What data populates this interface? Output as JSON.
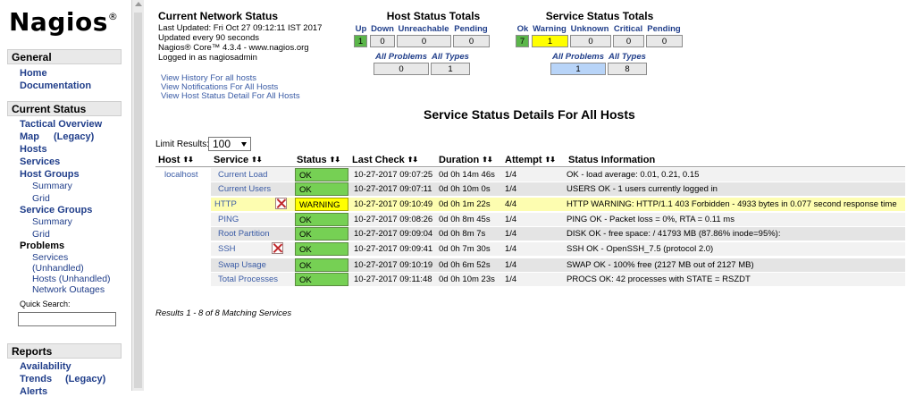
{
  "sidebar": {
    "logo": "Nagios",
    "logo_mark": "®",
    "general": {
      "heading": "General",
      "home": "Home",
      "documentation": "Documentation"
    },
    "current_status": {
      "heading": "Current Status",
      "tactical_overview": "Tactical Overview",
      "map": "Map",
      "legacy": "(Legacy)",
      "hosts": "Hosts",
      "services": "Services",
      "host_groups": "Host Groups",
      "hg_summary": "Summary",
      "hg_grid": "Grid",
      "service_groups": "Service Groups",
      "sg_summary": "Summary",
      "sg_grid": "Grid",
      "problems": "Problems",
      "p_services": "Services",
      "p_unhandled": "(Unhandled)",
      "p_hosts_unhandled": "Hosts (Unhandled)",
      "p_network_outages": "Network Outages",
      "quick_search": "Quick Search:"
    },
    "reports": {
      "heading": "Reports",
      "availability": "Availability",
      "trends": "Trends",
      "legacy": "(Legacy)",
      "alerts": "Alerts"
    }
  },
  "info": {
    "title": "Current Network Status",
    "last_updated": "Last Updated: Fri Oct 27 09:12:11 IST 2017",
    "update_interval": "Updated every 90 seconds",
    "version": "Nagios® Core™ 4.3.4 - www.nagios.org",
    "logged_in": "Logged in as nagiosadmin",
    "links": [
      "View History For all hosts",
      "View Notifications For All Hosts",
      "View Host Status Detail For All Hosts"
    ]
  },
  "host_totals": {
    "title": "Host Status Totals",
    "headers": [
      "Up",
      "Down",
      "Unreachable",
      "Pending"
    ],
    "values": [
      "1",
      "0",
      "0",
      "0"
    ],
    "sub_headers": [
      "All Problems",
      "All Types"
    ],
    "sub_values": [
      "0",
      "1"
    ]
  },
  "service_totals": {
    "title": "Service Status Totals",
    "headers": [
      "Ok",
      "Warning",
      "Unknown",
      "Critical",
      "Pending"
    ],
    "values": [
      "7",
      "1",
      "0",
      "0",
      "0"
    ],
    "sub_headers": [
      "All Problems",
      "All Types"
    ],
    "sub_values": [
      "1",
      "8"
    ]
  },
  "page_heading": "Service Status Details For All Hosts",
  "limit": {
    "label": "Limit Results:",
    "value": "100"
  },
  "table": {
    "columns": [
      "Host",
      "Service",
      "Status",
      "Last Check",
      "Duration",
      "Attempt",
      "Status Information"
    ],
    "sort_glyph": "⬆⬇",
    "rows": [
      {
        "host": "localhost",
        "service": "Current Load",
        "status": "OK",
        "last_check": "10-27-2017 09:07:25",
        "duration": "0d 0h 14m 46s",
        "attempt": "1/4",
        "info": "OK - load average: 0.01, 0.21, 0.15"
      },
      {
        "host": "",
        "service": "Current Users",
        "status": "OK",
        "last_check": "10-27-2017 09:07:11",
        "duration": "0d 0h 10m 0s",
        "attempt": "1/4",
        "info": "USERS OK - 1 users currently logged in"
      },
      {
        "host": "",
        "service": "HTTP",
        "status": "WARNING",
        "last_check": "10-27-2017 09:10:49",
        "duration": "0d 0h 1m 22s",
        "attempt": "4/4",
        "info": "HTTP WARNING: HTTP/1.1 403 Forbidden - 4933 bytes in 0.077 second response time"
      },
      {
        "host": "",
        "service": "PING",
        "status": "OK",
        "last_check": "10-27-2017 09:08:26",
        "duration": "0d 0h 8m 45s",
        "attempt": "1/4",
        "info": "PING OK - Packet loss = 0%, RTA = 0.11 ms"
      },
      {
        "host": "",
        "service": "Root Partition",
        "status": "OK",
        "last_check": "10-27-2017 09:09:04",
        "duration": "0d 0h 8m 7s",
        "attempt": "1/4",
        "info": "DISK OK - free space: / 41793 MB (87.86% inode=95%):"
      },
      {
        "host": "",
        "service": "SSH",
        "status": "OK",
        "last_check": "10-27-2017 09:09:41",
        "duration": "0d 0h 7m 30s",
        "attempt": "1/4",
        "info": "SSH OK - OpenSSH_7.5 (protocol 2.0)"
      },
      {
        "host": "",
        "service": "Swap Usage",
        "status": "OK",
        "last_check": "10-27-2017 09:10:19",
        "duration": "0d 0h 6m 52s",
        "attempt": "1/4",
        "info": "SWAP OK - 100% free (2127 MB out of 2127 MB)"
      },
      {
        "host": "",
        "service": "Total Processes",
        "status": "OK",
        "last_check": "10-27-2017 09:11:48",
        "duration": "0d 0h 10m 23s",
        "attempt": "1/4",
        "info": "PROCS OK: 42 processes with STATE = RSZDT"
      }
    ]
  },
  "results_text": "Results 1 - 8 of 8 Matching Services",
  "icons": {
    "notifications_disabled": "notifications-disabled-icon"
  }
}
